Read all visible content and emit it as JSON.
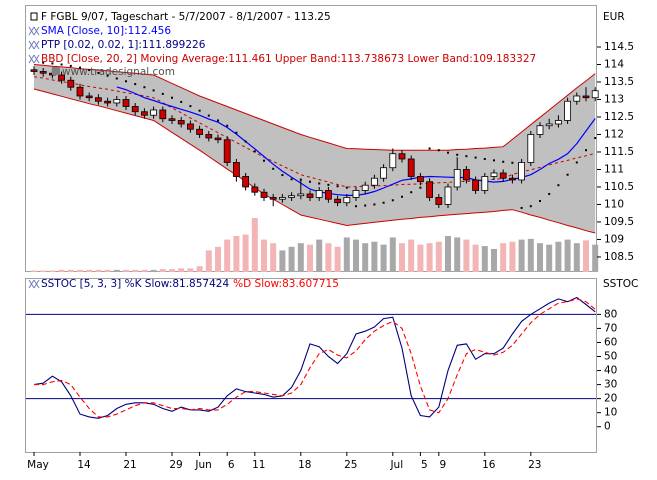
{
  "chart_data": [
    {
      "type": "candlestick",
      "title": "F FGBL 9/07, Tageschart - 5/7/2007 - 8/1/2007 - 113.25",
      "y_label": "EUR",
      "watermark": "www.tradesignal.com",
      "ylim": [
        108.07,
        115.7
      ],
      "yticks": [
        108.5,
        109,
        109.5,
        110,
        110.5,
        111,
        111.5,
        112,
        112.5,
        113,
        113.5,
        114,
        114.5
      ],
      "up_color": "#ffffff",
      "down_color": "#cc0000",
      "outline": "#000000",
      "open": [
        113.85,
        113.8,
        113.75,
        113.7,
        113.55,
        113.35,
        113.1,
        113.05,
        112.95,
        112.9,
        113.0,
        112.8,
        112.65,
        112.55,
        112.7,
        112.45,
        112.4,
        112.3,
        112.15,
        112.0,
        111.9,
        111.85,
        111.2,
        110.8,
        110.5,
        110.35,
        110.2,
        110.15,
        110.2,
        110.25,
        110.3,
        110.2,
        110.4,
        110.15,
        110.05,
        110.2,
        110.4,
        110.55,
        110.75,
        111.05,
        111.45,
        111.3,
        110.8,
        110.65,
        110.2,
        110.0,
        110.5,
        111.0,
        110.7,
        110.4,
        110.8,
        110.9,
        110.75,
        110.7,
        111.2,
        112.0,
        112.25,
        112.3,
        112.4,
        112.95,
        113.1,
        113.05
      ],
      "high": [
        113.95,
        113.9,
        113.85,
        113.8,
        113.65,
        113.45,
        113.2,
        113.15,
        113.05,
        113.1,
        113.1,
        112.9,
        112.75,
        112.8,
        112.8,
        112.55,
        112.5,
        112.4,
        112.25,
        112.1,
        112.0,
        111.95,
        111.3,
        110.9,
        110.6,
        110.45,
        110.3,
        110.3,
        110.35,
        110.7,
        110.4,
        110.5,
        110.5,
        110.25,
        110.3,
        110.5,
        110.65,
        110.85,
        111.15,
        111.6,
        111.55,
        111.4,
        110.9,
        110.75,
        110.3,
        110.6,
        111.35,
        111.1,
        110.8,
        110.9,
        111.0,
        111.0,
        110.85,
        111.3,
        112.1,
        112.35,
        112.45,
        112.55,
        113.05,
        113.2,
        113.35,
        113.35
      ],
      "low": [
        113.7,
        113.65,
        113.6,
        113.45,
        113.25,
        113.0,
        112.95,
        112.85,
        112.8,
        112.8,
        112.7,
        112.55,
        112.45,
        112.45,
        112.35,
        112.3,
        112.2,
        112.05,
        111.9,
        111.8,
        111.75,
        111.1,
        110.65,
        110.4,
        110.25,
        110.1,
        109.95,
        110.05,
        110.1,
        110.15,
        110.1,
        110.1,
        110.05,
        109.95,
        109.95,
        110.1,
        110.3,
        110.45,
        110.65,
        110.95,
        111.2,
        110.7,
        110.55,
        110.1,
        109.9,
        109.9,
        110.4,
        110.6,
        110.3,
        110.3,
        110.7,
        110.65,
        110.6,
        110.6,
        111.1,
        111.9,
        112.15,
        112.2,
        112.3,
        112.85,
        112.95,
        112.95
      ],
      "close": [
        113.8,
        113.75,
        113.7,
        113.55,
        113.35,
        113.1,
        113.05,
        112.95,
        112.9,
        113.0,
        112.8,
        112.65,
        112.55,
        112.7,
        112.45,
        112.4,
        112.3,
        112.15,
        112.0,
        111.9,
        111.85,
        111.2,
        110.8,
        110.5,
        110.35,
        110.2,
        110.15,
        110.2,
        110.25,
        110.3,
        110.2,
        110.4,
        110.15,
        110.05,
        110.2,
        110.4,
        110.55,
        110.75,
        111.05,
        111.45,
        111.3,
        110.8,
        110.65,
        110.2,
        110.0,
        110.5,
        111.0,
        110.7,
        110.4,
        110.8,
        110.9,
        110.75,
        110.7,
        111.2,
        112.0,
        112.25,
        112.3,
        112.4,
        112.95,
        113.1,
        113.05,
        113.25
      ],
      "series": [
        {
          "name": "SMA [Close, 10]:112.456",
          "color": "#0000ff",
          "style": "line",
          "values": [
            null,
            null,
            null,
            null,
            null,
            null,
            null,
            null,
            null,
            113.36,
            113.28,
            113.17,
            113.05,
            112.97,
            112.88,
            112.8,
            112.72,
            112.64,
            112.55,
            112.44,
            112.35,
            112.2,
            112.01,
            111.8,
            111.59,
            111.37,
            111.15,
            110.95,
            110.78,
            110.61,
            110.44,
            110.36,
            110.32,
            110.28,
            110.26,
            110.26,
            110.3,
            110.37,
            110.47,
            110.58,
            110.69,
            110.73,
            110.78,
            110.8,
            110.79,
            110.78,
            110.77,
            110.77,
            110.7,
            110.67,
            110.64,
            110.66,
            110.72,
            110.77,
            110.85,
            111.0,
            111.17,
            111.29,
            111.45,
            111.74,
            112.1,
            112.456
          ]
        },
        {
          "name": "PTP [0.02, 0.02, 1]:111.899226",
          "color": "#000080",
          "style": "dots",
          "values": [
            null,
            114.05,
            114.03,
            114.0,
            113.96,
            113.91,
            113.84,
            113.76,
            113.68,
            113.6,
            113.52,
            113.44,
            113.35,
            113.26,
            113.16,
            113.05,
            112.93,
            112.81,
            112.68,
            112.54,
            112.4,
            112.25,
            112.05,
            111.8,
            111.52,
            111.25,
            111.02,
            110.84,
            110.72,
            110.71,
            110.65,
            110.6,
            110.56,
            110.52,
            110.48,
            109.95,
            109.97,
            110.0,
            110.05,
            110.12,
            110.22,
            110.35,
            110.48,
            111.6,
            111.55,
            111.48,
            111.42,
            111.38,
            111.34,
            111.3,
            111.26,
            111.22,
            111.19,
            109.9,
            109.95,
            110.1,
            110.3,
            110.55,
            110.85,
            111.2,
            111.55,
            111.899226
          ]
        }
      ],
      "bands": {
        "name": "BBD [Close, 20, 2] Moving Average:111.461 Upper Band:113.738673 Lower Band:109.183327",
        "color": "#cc0000",
        "fill": "#c0c0c0",
        "upper": [
          114.0,
          113.98,
          113.95,
          113.93,
          113.91,
          113.88,
          113.86,
          113.84,
          113.82,
          113.79,
          113.77,
          113.75,
          113.72,
          113.7,
          113.58,
          113.46,
          113.34,
          113.22,
          113.1,
          113.0,
          112.9,
          112.8,
          112.7,
          112.6,
          112.5,
          112.4,
          112.3,
          112.2,
          112.1,
          112.0,
          111.92,
          111.84,
          111.76,
          111.68,
          111.6,
          111.59,
          111.58,
          111.57,
          111.56,
          111.55,
          111.55,
          111.55,
          111.55,
          111.55,
          111.55,
          111.55,
          111.57,
          111.58,
          111.6,
          111.61,
          111.63,
          111.65,
          111.86,
          112.07,
          112.28,
          112.49,
          112.7,
          112.91,
          113.12,
          113.33,
          113.53,
          113.738673
        ],
        "middle": [
          113.65,
          113.61,
          113.56,
          113.51,
          113.47,
          113.42,
          113.37,
          113.33,
          113.29,
          113.24,
          113.19,
          113.15,
          113.1,
          113.05,
          112.91,
          112.76,
          112.62,
          112.47,
          112.33,
          112.19,
          112.05,
          111.91,
          111.77,
          111.63,
          111.49,
          111.35,
          111.23,
          111.1,
          110.98,
          110.85,
          110.78,
          110.71,
          110.64,
          110.57,
          110.5,
          110.51,
          110.52,
          110.53,
          110.54,
          110.55,
          110.57,
          110.58,
          110.59,
          110.6,
          110.62,
          110.63,
          110.65,
          110.66,
          110.68,
          110.7,
          110.72,
          110.74,
          110.86,
          110.93,
          110.99,
          111.06,
          111.13,
          111.2,
          111.26,
          111.33,
          111.39,
          111.461
        ],
        "lower": [
          113.3,
          113.23,
          113.16,
          113.09,
          113.02,
          112.95,
          112.88,
          112.82,
          112.75,
          112.68,
          112.61,
          112.54,
          112.47,
          112.4,
          112.23,
          112.06,
          111.89,
          111.72,
          111.55,
          111.37,
          111.19,
          111.01,
          110.84,
          110.66,
          110.48,
          110.3,
          110.15,
          110.0,
          109.85,
          109.7,
          109.64,
          109.58,
          109.52,
          109.46,
          109.4,
          109.43,
          109.46,
          109.49,
          109.52,
          109.55,
          109.58,
          109.6,
          109.63,
          109.65,
          109.68,
          109.7,
          109.72,
          109.74,
          109.76,
          109.78,
          109.8,
          109.83,
          109.85,
          109.78,
          109.7,
          109.63,
          109.55,
          109.48,
          109.4,
          109.33,
          109.25,
          109.183327
        ]
      },
      "volume": {
        "vlim": [
          0,
          100
        ],
        "up_color": "#a8a8a8",
        "down_color": "#f2b4b4",
        "values": [
          2,
          2,
          2,
          3,
          3,
          3,
          3,
          3,
          3,
          3,
          3,
          3,
          3,
          3,
          4,
          4,
          5,
          5,
          8,
          30,
          35,
          45,
          50,
          52,
          75,
          45,
          40,
          30,
          35,
          40,
          38,
          45,
          40,
          35,
          48,
          45,
          40,
          42,
          38,
          48,
          40,
          45,
          38,
          40,
          42,
          50,
          48,
          45,
          38,
          36,
          32,
          40,
          42,
          45,
          46,
          40,
          38,
          42,
          45,
          40,
          44,
          38
        ]
      }
    },
    {
      "type": "line",
      "y_label": "SSTOC",
      "ylim": [
        -18,
        105.9
      ],
      "yticks": [
        0,
        10,
        20,
        30,
        40,
        50,
        60,
        70,
        80
      ],
      "levels": [
        80,
        20
      ],
      "level_color": "#000080",
      "categories": [
        "May",
        null,
        null,
        null,
        null,
        "14",
        null,
        null,
        null,
        null,
        "21",
        null,
        null,
        null,
        null,
        "29",
        null,
        null,
        "Jun",
        null,
        null,
        "6",
        null,
        null,
        "11",
        null,
        null,
        null,
        null,
        "18",
        null,
        null,
        null,
        null,
        "25",
        null,
        null,
        null,
        null,
        "Jul",
        null,
        null,
        "5",
        null,
        "9",
        null,
        null,
        null,
        null,
        "16",
        null,
        null,
        null,
        null,
        "23",
        null,
        null,
        null,
        null,
        null,
        null,
        null
      ],
      "series": [
        {
          "name": "SSTOC [5, 3, 3] %K Slow:81.857424",
          "color": "#000080",
          "dashed": false,
          "values": [
            30,
            31,
            36,
            32,
            22,
            9,
            7,
            6,
            8,
            13,
            16,
            17,
            17,
            16,
            13,
            11,
            14,
            12,
            12,
            11,
            14,
            22,
            27,
            25,
            24,
            23,
            21,
            22,
            28,
            40,
            59,
            57,
            50,
            45,
            52,
            66,
            68,
            71,
            77,
            78,
            56,
            22,
            8,
            7,
            14,
            40,
            58,
            59,
            48,
            52,
            52,
            56,
            66,
            75,
            80,
            84,
            88,
            91,
            89,
            92,
            87,
            81.857424
          ]
        },
        {
          "name": "%D Slow:83.607715",
          "color": "#ff0000",
          "dashed": true,
          "values": [
            30,
            30,
            32,
            33,
            30,
            21,
            13,
            7,
            7,
            9,
            12,
            15,
            17,
            17,
            15,
            13,
            13,
            12,
            13,
            12,
            12,
            16,
            21,
            25,
            25,
            24,
            23,
            22,
            24,
            30,
            42,
            52,
            55,
            51,
            49,
            54,
            62,
            68,
            72,
            75,
            70,
            52,
            29,
            12,
            10,
            20,
            37,
            52,
            55,
            53,
            51,
            53,
            58,
            66,
            74,
            80,
            84,
            88,
            89,
            91,
            89,
            83.607715
          ]
        }
      ]
    }
  ]
}
